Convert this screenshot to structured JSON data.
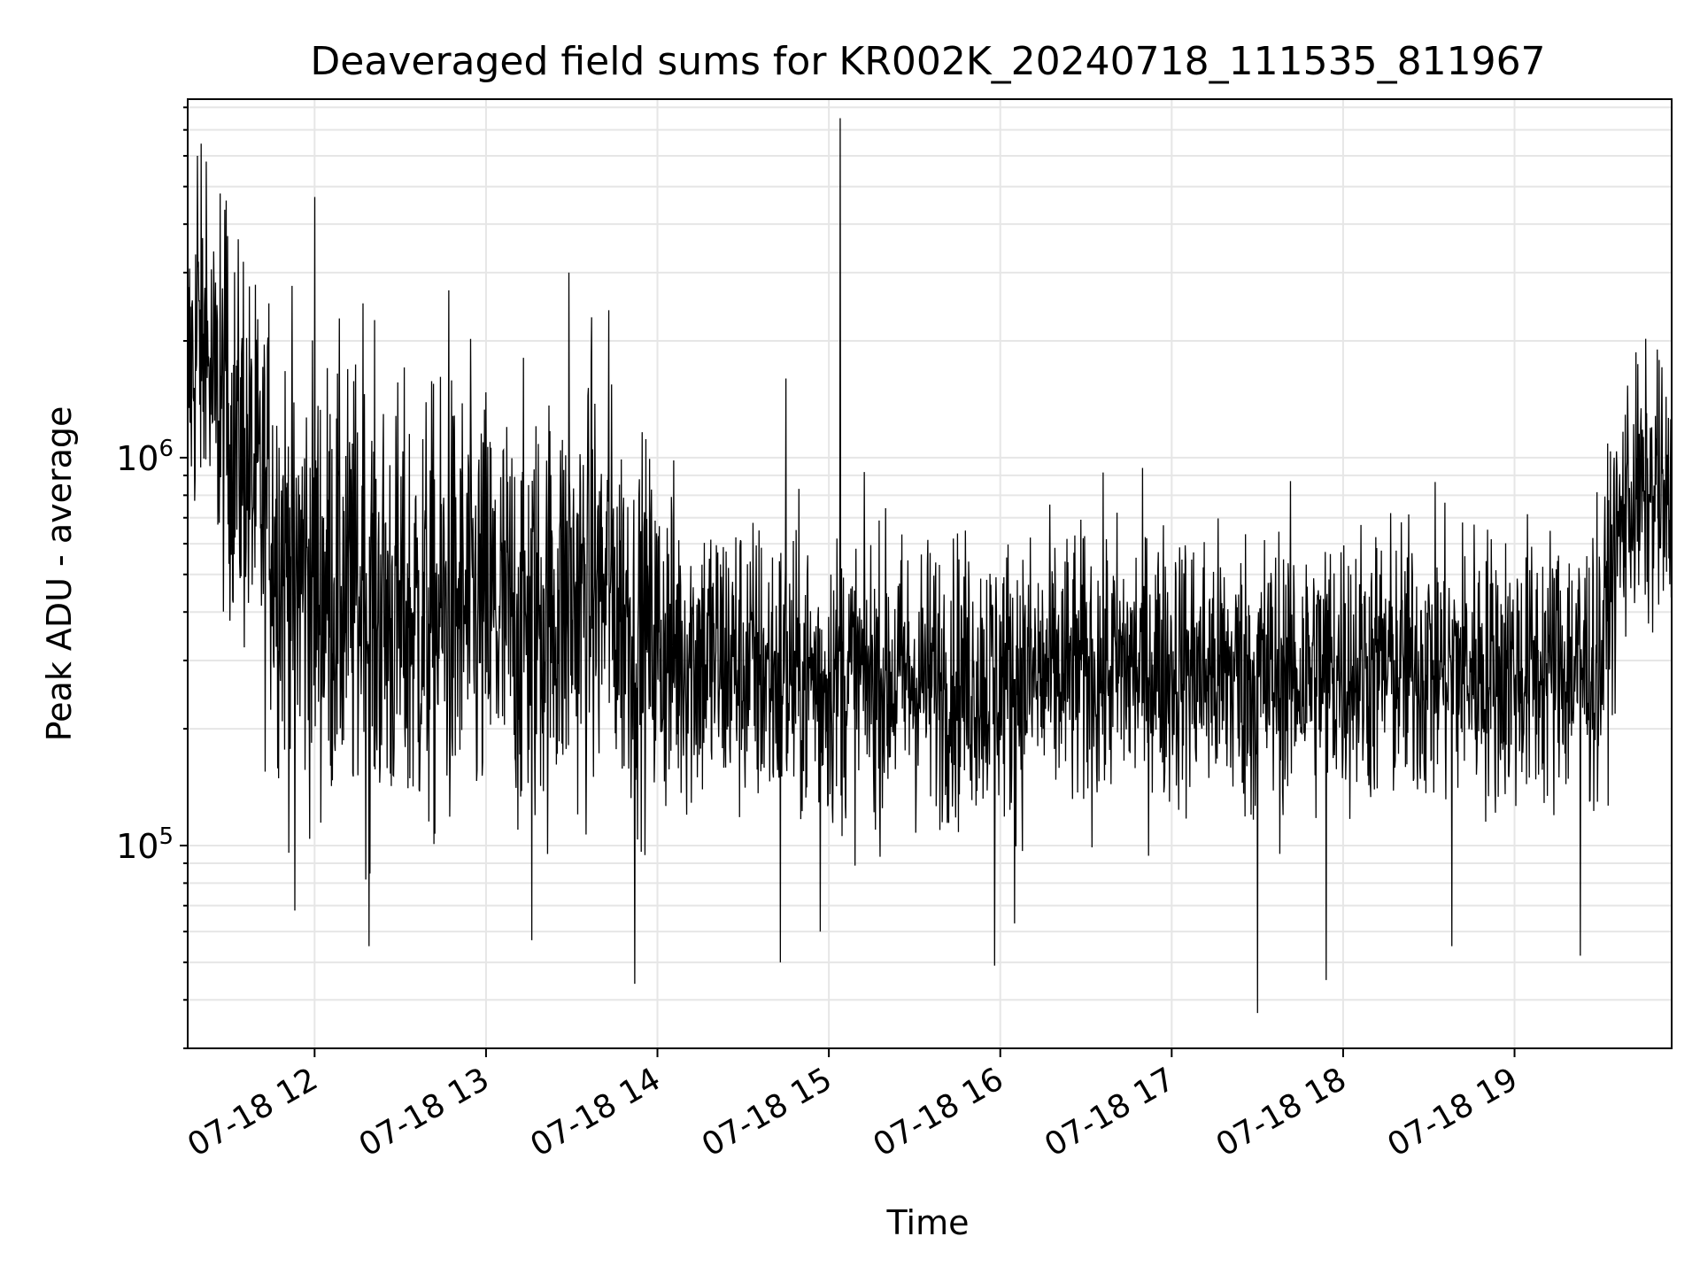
{
  "chart_data": {
    "type": "line",
    "title": "Deaveraged field sums for KR002K_20240718_111535_811967",
    "xlabel": "Time",
    "ylabel": "Peak ADU - average",
    "x_ticks": [
      "07-18 12",
      "07-18 13",
      "07-18 14",
      "07-18 15",
      "07-18 16",
      "07-18 17",
      "07-18 18",
      "07-18 19"
    ],
    "xlim": [
      "2024-07-18 11:15:35",
      "2024-07-18 19:55:00"
    ],
    "y_scale": "log",
    "ylim": [
      30000,
      8400000
    ],
    "y_ticks": [
      {
        "base": "10",
        "exp": "5",
        "value": 100000
      },
      {
        "base": "10",
        "exp": "6",
        "value": 1000000
      }
    ],
    "grid": true,
    "line_color": "#000000",
    "grid_color": "#e6e6e6",
    "series": [
      {
        "x": [
          "07-18 11:15",
          "07-18 11:20",
          "07-18 11:25",
          "07-18 11:30",
          "07-18 11:35",
          "07-18 11:40",
          "07-18 11:45",
          "07-18 11:50",
          "07-18 11:55",
          "07-18 12:00",
          "07-18 12:10",
          "07-18 12:20",
          "07-18 12:30",
          "07-18 12:40",
          "07-18 12:50",
          "07-18 13:00",
          "07-18 13:10",
          "07-18 13:20",
          "07-18 13:30",
          "07-18 13:40",
          "07-18 13:50",
          "07-18 14:00",
          "07-18 14:15",
          "07-18 14:30",
          "07-18 14:45",
          "07-18 15:00",
          "07-18 15:15",
          "07-18 15:30",
          "07-18 15:45",
          "07-18 16:00",
          "07-18 16:15",
          "07-18 16:30",
          "07-18 16:45",
          "07-18 17:00",
          "07-18 17:15",
          "07-18 17:30",
          "07-18 17:45",
          "07-18 18:00",
          "07-18 18:15",
          "07-18 18:30",
          "07-18 18:45",
          "07-18 19:00",
          "07-18 19:15",
          "07-18 19:30",
          "07-18 19:40",
          "07-18 19:50",
          "07-18 19:55"
        ],
        "y": [
          1500000,
          2000000,
          1400000,
          1200000,
          1000000,
          800000,
          650000,
          550000,
          500000,
          480000,
          450000,
          420000,
          380000,
          380000,
          400000,
          400000,
          370000,
          400000,
          430000,
          450000,
          400000,
          330000,
          310000,
          290000,
          270000,
          270000,
          270000,
          270000,
          270000,
          270000,
          270000,
          280000,
          290000,
          290000,
          280000,
          270000,
          280000,
          290000,
          290000,
          290000,
          290000,
          280000,
          290000,
          290000,
          800000,
          780000,
          700000
        ],
        "spread": [
          0.3,
          0.3,
          0.3,
          0.32,
          0.33,
          0.34,
          0.36,
          0.38,
          0.4,
          0.38,
          0.38,
          0.38,
          0.38,
          0.38,
          0.38,
          0.38,
          0.36,
          0.36,
          0.36,
          0.34,
          0.32,
          0.3,
          0.27,
          0.26,
          0.25,
          0.25,
          0.24,
          0.24,
          0.24,
          0.24,
          0.24,
          0.24,
          0.24,
          0.24,
          0.24,
          0.25,
          0.24,
          0.24,
          0.24,
          0.24,
          0.24,
          0.24,
          0.24,
          0.24,
          0.22,
          0.22,
          0.22
        ],
        "spikes": [
          {
            "x": "07-18 11:19",
            "y": 6000000
          },
          {
            "x": "07-18 11:22",
            "y": 5800000
          },
          {
            "x": "07-18 11:27",
            "y": 4800000
          },
          {
            "x": "07-18 11:29",
            "y": 4600000
          },
          {
            "x": "07-18 11:35",
            "y": 3200000
          },
          {
            "x": "07-18 11:44",
            "y": 2500000
          },
          {
            "x": "07-18 12:00",
            "y": 4700000
          },
          {
            "x": "07-18 12:17",
            "y": 2500000
          },
          {
            "x": "07-18 12:47",
            "y": 2700000
          },
          {
            "x": "07-18 13:29",
            "y": 3000000
          },
          {
            "x": "07-18 13:37",
            "y": 2300000
          },
          {
            "x": "07-18 13:43",
            "y": 2400000
          },
          {
            "x": "07-18 14:45",
            "y": 1600000
          },
          {
            "x": "07-18 15:04",
            "y": 7500000
          },
          {
            "x": "07-18 19:50",
            "y": 1900000
          },
          {
            "x": "07-18 11:53",
            "y": 68000
          },
          {
            "x": "07-18 12:19",
            "y": 55000
          },
          {
            "x": "07-18 13:16",
            "y": 57000
          },
          {
            "x": "07-18 13:52",
            "y": 44000
          },
          {
            "x": "07-18 14:43",
            "y": 50000
          },
          {
            "x": "07-18 14:57",
            "y": 60000
          },
          {
            "x": "07-18 15:58",
            "y": 49000
          },
          {
            "x": "07-18 16:05",
            "y": 63000
          },
          {
            "x": "07-18 17:30",
            "y": 37000
          },
          {
            "x": "07-18 17:54",
            "y": 45000
          },
          {
            "x": "07-18 18:38",
            "y": 55000
          },
          {
            "x": "07-18 19:23",
            "y": 52000
          }
        ]
      }
    ]
  }
}
